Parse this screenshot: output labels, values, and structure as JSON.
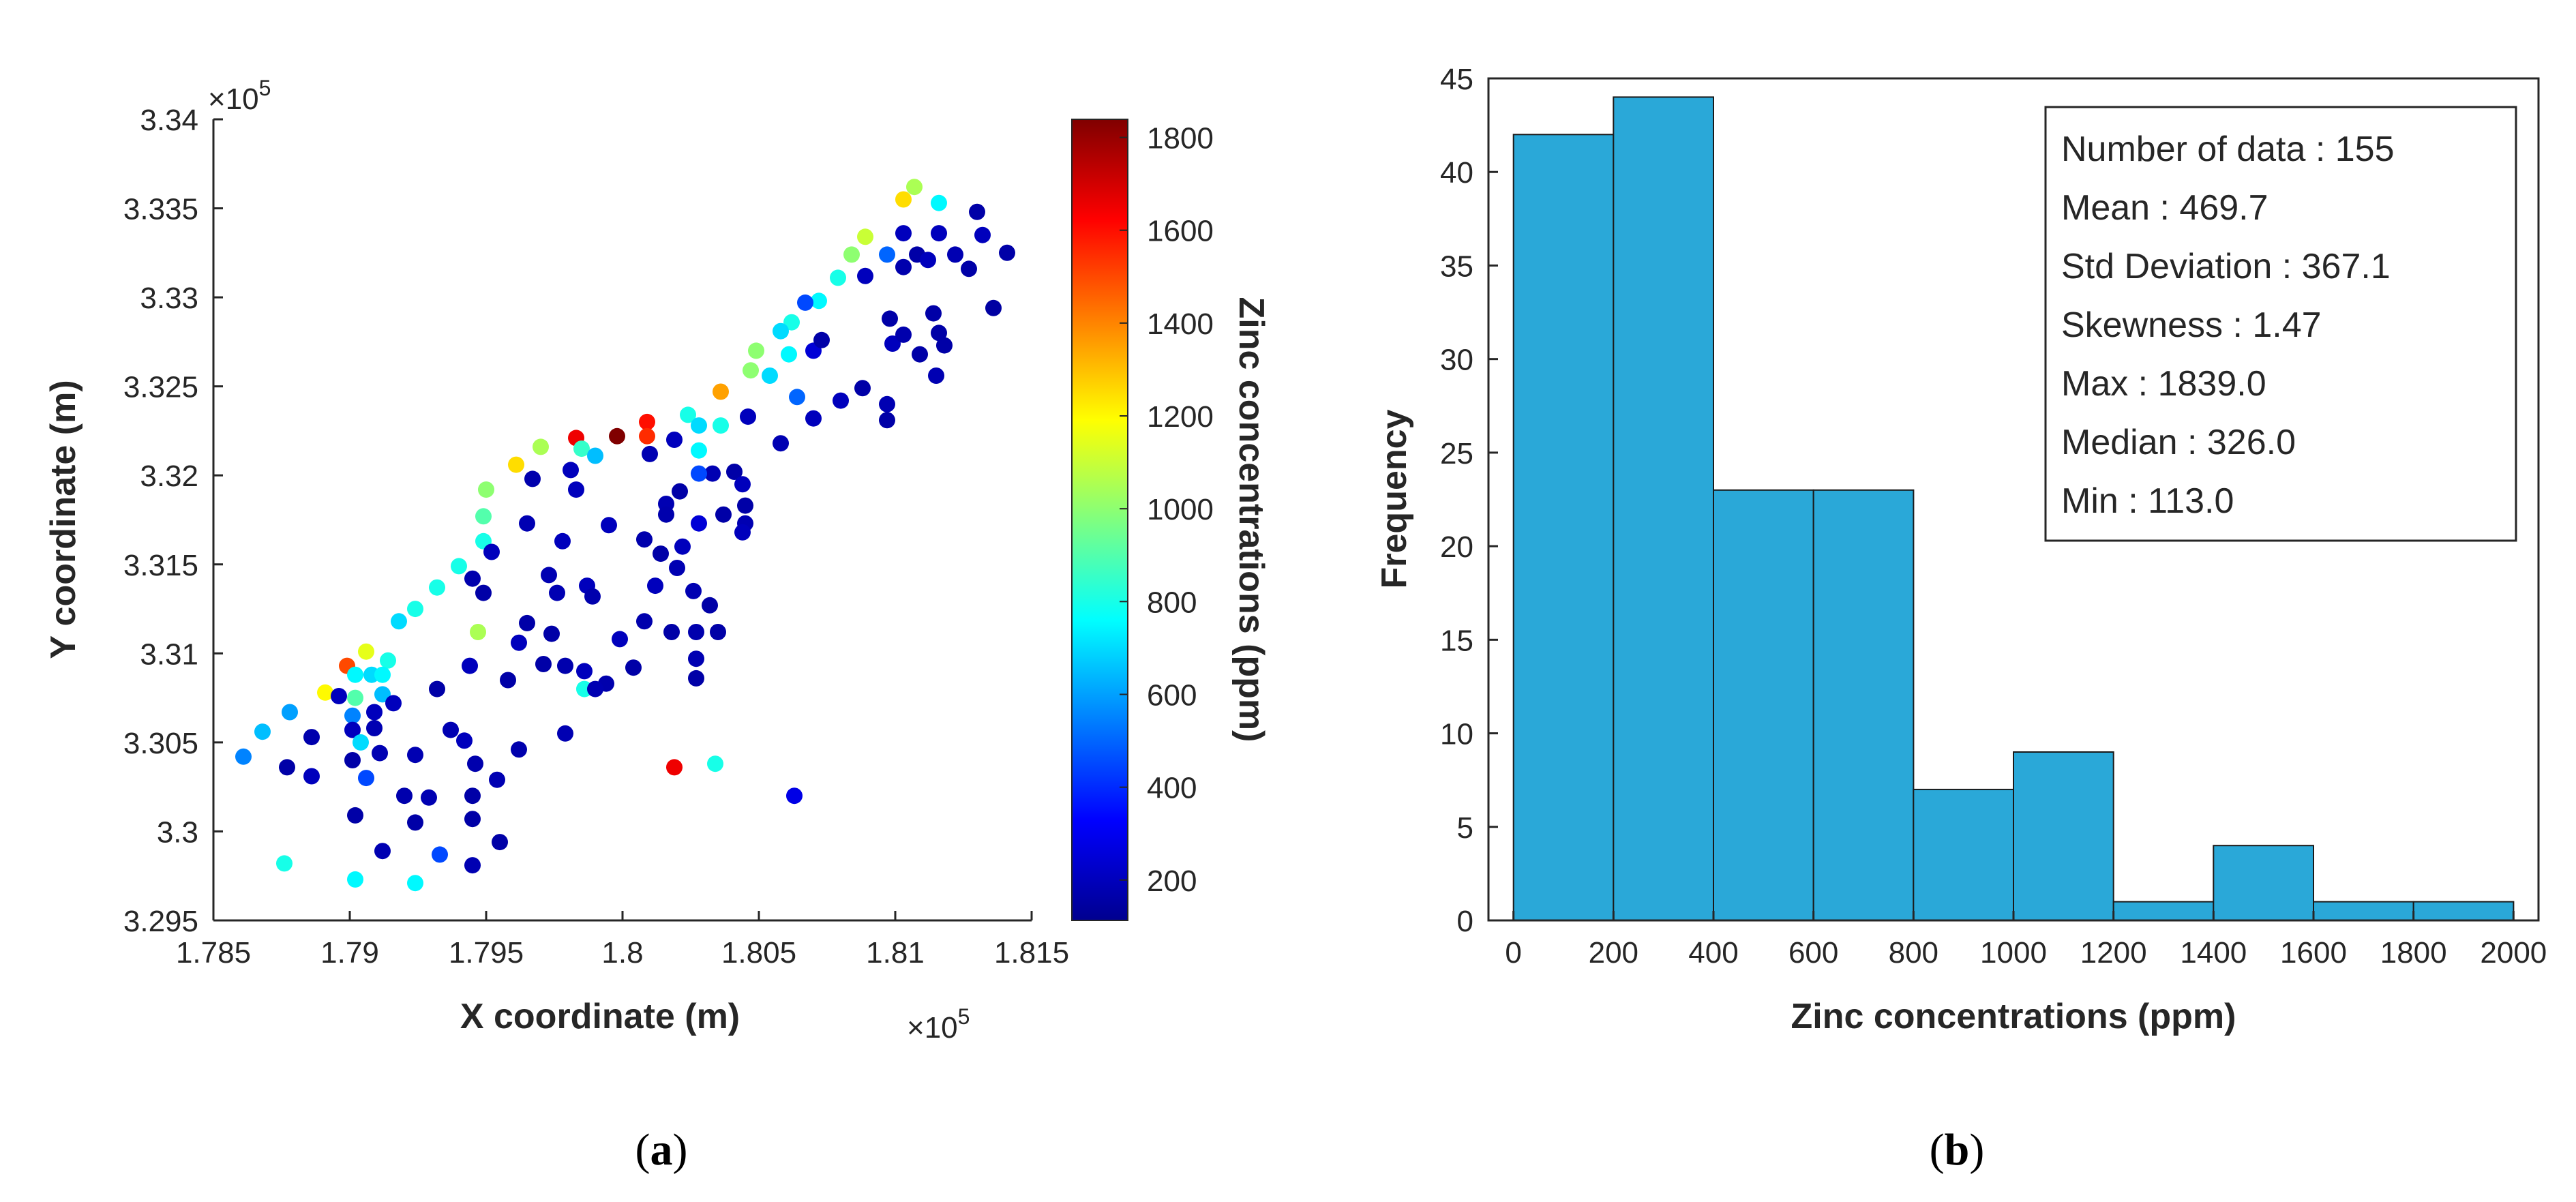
{
  "chart_data": [
    {
      "type": "scatter",
      "caption_open": "(",
      "caption_letter": "a",
      "caption_close": ")",
      "xlabel": "X coordinate (m)",
      "ylabel": "Y coordinate (m)",
      "x_exponent_label": "×10",
      "x_exponent_power": "5",
      "y_exponent_label": "×10",
      "y_exponent_power": "5",
      "xlim": [
        1.785,
        1.815
      ],
      "ylim": [
        3.295,
        3.34
      ],
      "xticks": [
        "1.785",
        "1.79",
        "1.795",
        "1.8",
        "1.805",
        "1.81",
        "1.815"
      ],
      "yticks": [
        "3.295",
        "3.3",
        "3.305",
        "3.31",
        "3.315",
        "3.32",
        "3.325",
        "3.33",
        "3.335",
        "3.34"
      ],
      "colorbar": {
        "label": "Zinc concentrations (ppm)",
        "range": [
          113,
          1839
        ],
        "ticks": [
          "200",
          "400",
          "600",
          "800",
          "1000",
          "1200",
          "1400",
          "1600",
          "1800"
        ]
      },
      "points": [
        [
          1.8107,
          3.3362,
          1050
        ],
        [
          1.8116,
          3.3353,
          750
        ],
        [
          1.813,
          3.3348,
          160
        ],
        [
          1.8103,
          3.3355,
          1250
        ],
        [
          1.8103,
          3.3336,
          200
        ],
        [
          1.8116,
          3.3336,
          200
        ],
        [
          1.8132,
          3.3335,
          200
        ],
        [
          1.8141,
          3.3325,
          160
        ],
        [
          1.8089,
          3.3334,
          1100
        ],
        [
          1.8084,
          3.3324,
          1000
        ],
        [
          1.8097,
          3.3324,
          500
        ],
        [
          1.8103,
          3.3317,
          170
        ],
        [
          1.8108,
          3.3324,
          160
        ],
        [
          1.8112,
          3.3321,
          200
        ],
        [
          1.8122,
          3.3324,
          180
        ],
        [
          1.8127,
          3.3316,
          160
        ],
        [
          1.8089,
          3.3312,
          200
        ],
        [
          1.8079,
          3.3311,
          800
        ],
        [
          1.8072,
          3.3298,
          750
        ],
        [
          1.8067,
          3.3297,
          450
        ],
        [
          1.8062,
          3.3286,
          800
        ],
        [
          1.8058,
          3.3281,
          700
        ],
        [
          1.8049,
          3.327,
          1000
        ],
        [
          1.8061,
          3.3268,
          750
        ],
        [
          1.807,
          3.327,
          250
        ],
        [
          1.8073,
          3.3276,
          160
        ],
        [
          1.8098,
          3.3288,
          160
        ],
        [
          1.8099,
          3.3274,
          200
        ],
        [
          1.8103,
          3.3279,
          170
        ],
        [
          1.8109,
          3.3268,
          160
        ],
        [
          1.8114,
          3.3291,
          160
        ],
        [
          1.8116,
          3.328,
          160
        ],
        [
          1.8118,
          3.3273,
          160
        ],
        [
          1.8115,
          3.3256,
          180
        ],
        [
          1.8136,
          3.3294,
          150
        ],
        [
          1.8047,
          3.3259,
          1000
        ],
        [
          1.8054,
          3.3256,
          700
        ],
        [
          1.8036,
          3.3247,
          1350
        ],
        [
          1.8064,
          3.3244,
          500
        ],
        [
          1.808,
          3.3242,
          200
        ],
        [
          1.8088,
          3.3249,
          160
        ],
        [
          1.8097,
          3.324,
          180
        ],
        [
          1.8097,
          3.3231,
          160
        ],
        [
          1.807,
          3.3232,
          200
        ],
        [
          1.8024,
          3.3234,
          800
        ],
        [
          1.8028,
          3.3228,
          700
        ],
        [
          1.8036,
          3.3228,
          800
        ],
        [
          1.8019,
          3.322,
          200
        ],
        [
          1.8028,
          3.3214,
          750
        ],
        [
          1.8046,
          3.3233,
          200
        ],
        [
          1.8058,
          3.3218,
          180
        ],
        [
          1.8033,
          3.3201,
          180
        ],
        [
          1.8028,
          3.3201,
          450
        ],
        [
          1.8041,
          3.3202,
          160
        ],
        [
          1.8044,
          3.3195,
          200
        ],
        [
          1.8045,
          3.3183,
          160
        ],
        [
          1.8045,
          3.3173,
          180
        ],
        [
          1.8044,
          3.3168,
          200
        ],
        [
          1.8021,
          3.3191,
          160
        ],
        [
          1.8016,
          3.3184,
          180
        ],
        [
          1.8016,
          3.3178,
          170
        ],
        [
          1.8028,
          3.3173,
          250
        ],
        [
          1.8037,
          3.3178,
          160
        ],
        [
          1.8014,
          3.3156,
          160
        ],
        [
          1.8022,
          3.316,
          200
        ],
        [
          1.802,
          3.3148,
          180
        ],
        [
          1.8008,
          3.3164,
          170
        ],
        [
          1.8012,
          3.3138,
          200
        ],
        [
          1.8026,
          3.3135,
          180
        ],
        [
          1.8032,
          3.3127,
          160
        ],
        [
          1.8018,
          3.3112,
          160
        ],
        [
          1.8027,
          3.3112,
          170
        ],
        [
          1.8035,
          3.3112,
          160
        ],
        [
          1.8027,
          3.3097,
          180
        ],
        [
          1.8027,
          3.3086,
          160
        ],
        [
          1.8008,
          3.3118,
          170
        ],
        [
          1.7999,
          3.3108,
          200
        ],
        [
          1.8004,
          3.3092,
          160
        ],
        [
          1.7994,
          3.3083,
          170
        ],
        [
          1.8019,
          3.3036,
          1650
        ],
        [
          1.8034,
          3.3038,
          800
        ],
        [
          1.8063,
          3.302,
          280
        ],
        [
          1.7998,
          3.3222,
          1839
        ],
        [
          1.8009,
          3.323,
          1600
        ],
        [
          1.8009,
          3.3222,
          1550
        ],
        [
          1.7983,
          3.3221,
          1650
        ],
        [
          1.7985,
          3.3215,
          850
        ],
        [
          1.799,
          3.3211,
          650
        ],
        [
          1.7981,
          3.3203,
          200
        ],
        [
          1.7983,
          3.3192,
          200
        ],
        [
          1.801,
          3.3212,
          180
        ],
        [
          1.7995,
          3.3172,
          200
        ],
        [
          1.797,
          3.3216,
          1050
        ],
        [
          1.7961,
          3.3206,
          1250
        ],
        [
          1.795,
          3.3192,
          1000
        ],
        [
          1.7949,
          3.3177,
          900
        ],
        [
          1.7949,
          3.3163,
          800
        ],
        [
          1.7952,
          3.3157,
          200
        ],
        [
          1.7967,
          3.3198,
          170
        ],
        [
          1.7965,
          3.3173,
          180
        ],
        [
          1.7978,
          3.3163,
          200
        ],
        [
          1.7973,
          3.3144,
          180
        ],
        [
          1.7987,
          3.3138,
          200
        ],
        [
          1.7976,
          3.3134,
          180
        ],
        [
          1.7965,
          3.3117,
          160
        ],
        [
          1.7989,
          3.3132,
          170
        ],
        [
          1.794,
          3.3149,
          800
        ],
        [
          1.7945,
          3.3142,
          170
        ],
        [
          1.7949,
          3.3134,
          160
        ],
        [
          1.7932,
          3.3137,
          800
        ],
        [
          1.7924,
          3.3125,
          800
        ],
        [
          1.7918,
          3.3118,
          700
        ],
        [
          1.7947,
          3.3112,
          1050
        ],
        [
          1.7962,
          3.3106,
          200
        ],
        [
          1.7974,
          3.3111,
          160
        ],
        [
          1.7971,
          3.3094,
          160
        ],
        [
          1.7979,
          3.3093,
          170
        ],
        [
          1.7986,
          3.309,
          200
        ],
        [
          1.7986,
          3.308,
          800
        ],
        [
          1.7944,
          3.3093,
          200
        ],
        [
          1.7958,
          3.3085,
          160
        ],
        [
          1.799,
          3.308,
          180
        ],
        [
          1.7932,
          3.308,
          160
        ],
        [
          1.7937,
          3.3057,
          180
        ],
        [
          1.7942,
          3.3051,
          200
        ],
        [
          1.7962,
          3.3046,
          170
        ],
        [
          1.7979,
          3.3055,
          180
        ],
        [
          1.7946,
          3.3038,
          170
        ],
        [
          1.7945,
          3.302,
          160
        ],
        [
          1.7954,
          3.3029,
          180
        ],
        [
          1.7924,
          3.3043,
          180
        ],
        [
          1.792,
          3.302,
          170
        ],
        [
          1.7929,
          3.3019,
          180
        ],
        [
          1.7924,
          3.3005,
          160
        ],
        [
          1.7933,
          3.2987,
          450
        ],
        [
          1.7945,
          3.2981,
          180
        ],
        [
          1.7945,
          3.3007,
          160
        ],
        [
          1.7955,
          3.2994,
          160
        ],
        [
          1.7912,
          3.2989,
          180
        ],
        [
          1.7902,
          3.3009,
          160
        ],
        [
          1.7924,
          3.2971,
          750
        ],
        [
          1.7902,
          3.2973,
          750
        ],
        [
          1.7876,
          3.2982,
          800
        ],
        [
          1.7906,
          3.303,
          450
        ],
        [
          1.7899,
          3.3093,
          1500
        ],
        [
          1.7906,
          3.3101,
          1150
        ],
        [
          1.7914,
          3.3096,
          800
        ],
        [
          1.7891,
          3.3078,
          1200
        ],
        [
          1.7896,
          3.3076,
          200
        ],
        [
          1.7902,
          3.3088,
          750
        ],
        [
          1.7908,
          3.3088,
          700
        ],
        [
          1.7912,
          3.3088,
          750
        ],
        [
          1.7902,
          3.3075,
          900
        ],
        [
          1.7912,
          3.3077,
          650
        ],
        [
          1.7916,
          3.3072,
          200
        ],
        [
          1.7901,
          3.3065,
          550
        ],
        [
          1.7909,
          3.3067,
          200
        ],
        [
          1.7901,
          3.3057,
          200
        ],
        [
          1.7909,
          3.3058,
          180
        ],
        [
          1.7904,
          3.305,
          700
        ],
        [
          1.7911,
          3.3044,
          180
        ],
        [
          1.7901,
          3.304,
          160
        ],
        [
          1.7878,
          3.3067,
          600
        ],
        [
          1.7868,
          3.3056,
          650
        ],
        [
          1.7861,
          3.3042,
          550
        ],
        [
          1.7877,
          3.3036,
          160
        ],
        [
          1.7886,
          3.3031,
          200
        ],
        [
          1.7886,
          3.3053,
          170
        ]
      ]
    },
    {
      "type": "bar",
      "caption_open": "(",
      "caption_letter": "b",
      "caption_close": ")",
      "xlabel": "Zinc concentrations (ppm)",
      "ylabel": "Frequency",
      "bin_edges": [
        0,
        200,
        400,
        600,
        800,
        1000,
        1200,
        1400,
        1600,
        1800,
        2000
      ],
      "values": [
        42,
        44,
        23,
        23,
        7,
        9,
        1,
        4,
        1,
        1
      ],
      "xlim": [
        -50,
        2050
      ],
      "ylim": [
        0,
        45
      ],
      "xticks": [
        "0",
        "200",
        "400",
        "600",
        "800",
        "1000",
        "1200",
        "1400",
        "1600",
        "1800",
        "2000"
      ],
      "yticks": [
        "0",
        "5",
        "10",
        "15",
        "20",
        "25",
        "30",
        "35",
        "40",
        "45"
      ],
      "bar_color": "#2aa8d8",
      "stats": [
        "Number of data : 155",
        "Mean : 469.7",
        "Std Deviation : 367.1",
        "Skewness : 1.47",
        "Max : 1839.0",
        "Median : 326.0",
        "Min : 113.0"
      ]
    }
  ]
}
